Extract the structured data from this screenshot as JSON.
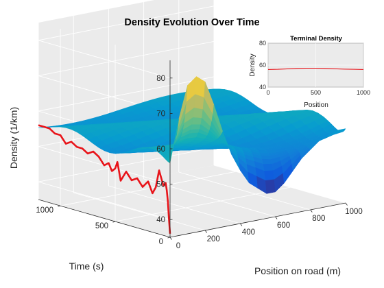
{
  "chart_data": [
    {
      "type": "surface-3d",
      "title": "Density Evolution Over Time",
      "xlabel": "Position on road (m)",
      "ylabel": "Time (s)",
      "zlabel": "Density (1/km)",
      "xlim": [
        0,
        1000
      ],
      "ylim": [
        0,
        1200
      ],
      "zlim": [
        35,
        85
      ],
      "xticks": [
        0,
        200,
        400,
        600,
        800,
        1000
      ],
      "yticks": [
        0,
        500,
        1000
      ],
      "zticks": [
        40,
        50,
        60,
        70,
        80
      ],
      "grid": true,
      "colormap": "parula",
      "highlight_color": "#e8141a",
      "background_color": "#ebebeb",
      "surface": {
        "x": [
          0,
          50,
          100,
          150,
          200,
          250,
          300,
          350,
          400,
          450,
          500,
          550,
          600,
          650,
          700,
          750,
          800,
          850,
          900,
          950,
          1000
        ],
        "t": [
          0,
          10,
          20,
          30,
          40,
          50,
          60,
          80,
          100,
          130,
          160,
          200,
          250,
          300,
          350,
          400,
          450,
          500,
          550,
          600,
          650,
          700,
          750,
          800,
          850,
          900,
          950,
          1000,
          1050,
          1100,
          1150,
          1200
        ],
        "initial_profile": [
          56,
          68,
          77,
          79,
          77,
          70,
          62,
          55,
          50,
          46,
          44,
          42,
          42,
          44,
          47,
          50,
          52,
          54,
          55,
          56,
          56
        ],
        "steady_level": 56,
        "oscillation_amplitude": 3
      },
      "highlight_series": {
        "name": "",
        "x_position": 0,
        "t": [
          0,
          10,
          20,
          30,
          40,
          60,
          80,
          100,
          130,
          160,
          200,
          250,
          300,
          350,
          400,
          450,
          480,
          500,
          530,
          560,
          600,
          650,
          700,
          750,
          800,
          850,
          900,
          950,
          1000,
          1050,
          1100,
          1150,
          1200
        ],
        "density": [
          36,
          40,
          45,
          48,
          50,
          49,
          51,
          53,
          48,
          46,
          49,
          47,
          49,
          48,
          50,
          47,
          52,
          50,
          49,
          51,
          50,
          52,
          53,
          52,
          53,
          53,
          54,
          53,
          55,
          55,
          56,
          56,
          56
        ]
      }
    },
    {
      "type": "line",
      "title": "Terminal Density",
      "xlabel": "Position",
      "ylabel": "Density",
      "xlim": [
        0,
        1000
      ],
      "ylim": [
        40,
        80
      ],
      "xticks": [
        0,
        500,
        1000
      ],
      "yticks": [
        40,
        60,
        80
      ],
      "line_color": "#e8141a",
      "background_color": "#ebebeb",
      "x": [
        0,
        100,
        200,
        300,
        400,
        500,
        600,
        700,
        800,
        900,
        1000
      ],
      "y": [
        56,
        56.2,
        56.6,
        57,
        57.2,
        57.2,
        57,
        56.7,
        56.4,
        56.2,
        56
      ]
    }
  ]
}
